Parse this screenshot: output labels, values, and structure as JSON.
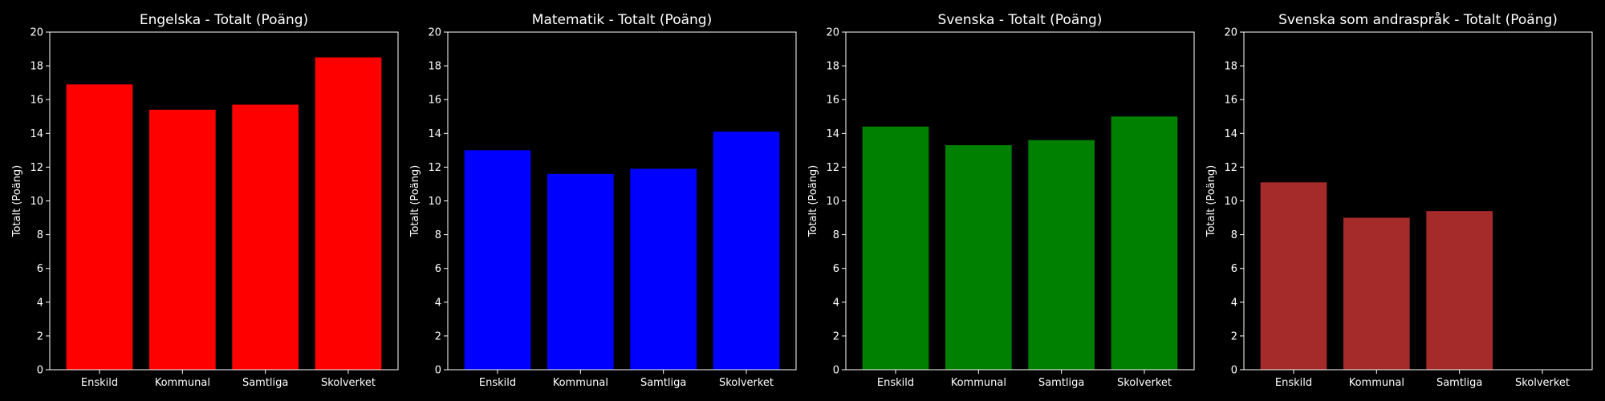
{
  "chart_data": [
    {
      "type": "bar",
      "title": "Engelska - Totalt (Poäng)",
      "ylabel": "Totalt (Poäng)",
      "categories": [
        "Enskild",
        "Kommunal",
        "Samtliga",
        "Skolverket"
      ],
      "values": [
        16.9,
        15.4,
        15.7,
        18.5
      ],
      "color": "#ff0000",
      "ylim": [
        0,
        20
      ],
      "yticks": [
        "0",
        "2",
        "4",
        "6",
        "8",
        "10",
        "12",
        "14",
        "16",
        "18",
        "20"
      ]
    },
    {
      "type": "bar",
      "title": "Matematik - Totalt (Poäng)",
      "ylabel": "Totalt (Poäng)",
      "categories": [
        "Enskild",
        "Kommunal",
        "Samtliga",
        "Skolverket"
      ],
      "values": [
        13.0,
        11.6,
        11.9,
        14.1
      ],
      "color": "#0000ff",
      "ylim": [
        0,
        20
      ],
      "yticks": [
        "0",
        "2",
        "4",
        "6",
        "8",
        "10",
        "12",
        "14",
        "16",
        "18",
        "20"
      ]
    },
    {
      "type": "bar",
      "title": "Svenska - Totalt (Poäng)",
      "ylabel": "Totalt (Poäng)",
      "categories": [
        "Enskild",
        "Kommunal",
        "Samtliga",
        "Skolverket"
      ],
      "values": [
        14.4,
        13.3,
        13.6,
        15.0
      ],
      "color": "#008000",
      "ylim": [
        0,
        20
      ],
      "yticks": [
        "0",
        "2",
        "4",
        "6",
        "8",
        "10",
        "12",
        "14",
        "16",
        "18",
        "20"
      ]
    },
    {
      "type": "bar",
      "title": "Svenska som andraspråk - Totalt (Poäng)",
      "ylabel": "Totalt (Poäng)",
      "categories": [
        "Enskild",
        "Kommunal",
        "Samtliga",
        "Skolverket"
      ],
      "values": [
        11.1,
        9.0,
        9.4,
        null
      ],
      "color": "#a52a2a",
      "ylim": [
        0,
        20
      ],
      "yticks": [
        "0",
        "2",
        "4",
        "6",
        "8",
        "10",
        "12",
        "14",
        "16",
        "18",
        "20"
      ]
    }
  ]
}
